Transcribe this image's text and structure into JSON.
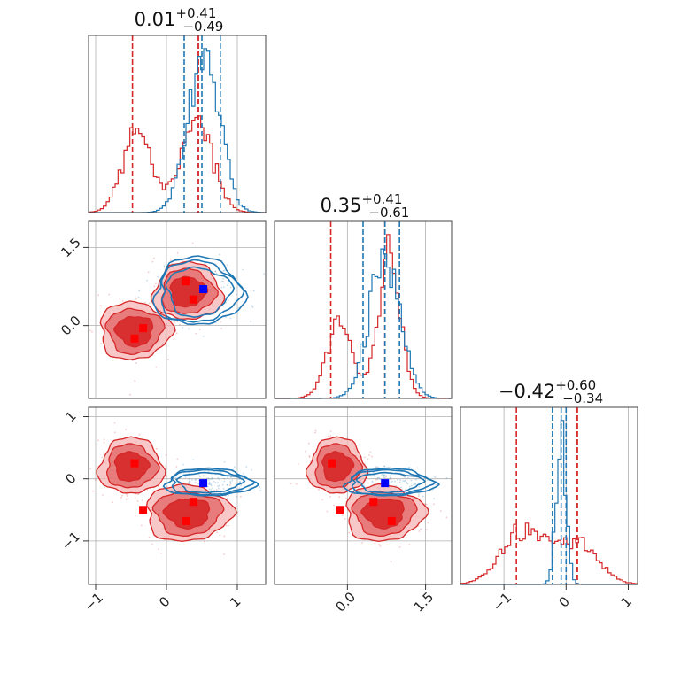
{
  "chart_data": {
    "type": "corner",
    "parameters": [
      "p0",
      "p1",
      "p2"
    ],
    "colors": {
      "blue": "#1f77b4",
      "red": "#d62728",
      "blue_marker": "#0000ff",
      "red_marker": "#ff0000"
    },
    "titles": [
      {
        "value": "0.01",
        "sup": "+0.41",
        "sub": "−0.49"
      },
      {
        "value": "0.35",
        "sup": "+0.41",
        "sub": "−0.61"
      },
      {
        "value": "−0.42",
        "sup": "+0.60",
        "sub": "−0.34"
      }
    ],
    "ranges": [
      [
        -1.1,
        1.4
      ],
      [
        -1.4,
        2.0
      ],
      [
        -1.7,
        1.15
      ]
    ],
    "ticks": {
      "p0": {
        "values": [
          -1,
          0,
          1
        ],
        "labels": [
          "−1",
          "0",
          "1"
        ]
      },
      "p1": {
        "values": [
          0.0,
          1.5
        ],
        "labels": [
          "0.0",
          "1.5"
        ]
      },
      "p2": {
        "values": [
          -1,
          0,
          1
        ],
        "labels": [
          "−1",
          "0",
          "1"
        ]
      }
    },
    "grid": true,
    "histograms": [
      {
        "param": "p0",
        "blue": {
          "modes": [
            {
              "mean": 0.52,
              "sd": 0.22,
              "w": 1
            }
          ],
          "quantiles": [
            0.25,
            0.5,
            0.76
          ]
        },
        "red": {
          "modes": [
            {
              "mean": -0.42,
              "sd": 0.2,
              "w": 0.55
            },
            {
              "mean": 0.42,
              "sd": 0.22,
              "w": 0.62
            }
          ],
          "quantiles": [
            -0.48,
            0.45,
            0.45
          ]
        }
      },
      {
        "param": "p1",
        "blue": {
          "modes": [
            {
              "mean": 0.72,
              "sd": 0.3,
              "w": 1
            }
          ],
          "quantiles": [
            0.3,
            0.72,
            1.0
          ]
        },
        "red": {
          "modes": [
            {
              "mean": -0.15,
              "sd": 0.25,
              "w": 0.55
            },
            {
              "mean": 0.8,
              "sd": 0.22,
              "w": 0.95
            }
          ],
          "quantiles": [
            -0.32,
            0.72,
            0.72
          ]
        }
      },
      {
        "param": "p2",
        "blue": {
          "modes": [
            {
              "mean": -0.08,
              "sd": 0.08,
              "w": 1
            }
          ],
          "quantiles": [
            -0.22,
            -0.08,
            0.0
          ]
        },
        "red": {
          "modes": [
            {
              "mean": -0.7,
              "sd": 0.35,
              "w": 0.35
            },
            {
              "mean": 0.15,
              "sd": 0.35,
              "w": 0.28
            }
          ],
          "quantiles": [
            -0.8,
            0.18,
            0.18
          ]
        }
      }
    ],
    "pairs": [
      {
        "x": "p0",
        "y": "p1",
        "blue_blobs": [
          {
            "cx": 0.45,
            "cy": 0.65,
            "rx": 0.62,
            "ry": 0.65,
            "rot": 0
          }
        ],
        "red_blobs": [
          {
            "cx": 0.3,
            "cy": 0.65,
            "rx": 0.48,
            "ry": 0.55,
            "rot": 0
          },
          {
            "cx": -0.45,
            "cy": -0.1,
            "rx": 0.5,
            "ry": 0.55,
            "rot": 0
          }
        ],
        "blue_markers": [
          [
            0.52,
            0.7
          ]
        ],
        "red_markers": [
          [
            0.27,
            0.85
          ],
          [
            0.38,
            0.5
          ],
          [
            -0.33,
            -0.05
          ],
          [
            -0.45,
            -0.25
          ]
        ]
      },
      {
        "x": "p0",
        "y": "p2",
        "blue_blobs": [
          {
            "cx": 0.6,
            "cy": -0.06,
            "rx": 0.62,
            "ry": 0.22,
            "rot": 0
          }
        ],
        "red_blobs": [
          {
            "cx": -0.5,
            "cy": 0.2,
            "rx": 0.45,
            "ry": 0.45,
            "rot": 0
          },
          {
            "cx": 0.3,
            "cy": -0.55,
            "rx": 0.6,
            "ry": 0.45,
            "rot": 0
          }
        ],
        "blue_markers": [
          [
            0.52,
            -0.07
          ]
        ],
        "red_markers": [
          [
            -0.45,
            0.25
          ],
          [
            -0.33,
            -0.5
          ],
          [
            0.38,
            -0.37
          ],
          [
            0.28,
            -0.68
          ]
        ]
      },
      {
        "x": "p1",
        "y": "p2",
        "blue_blobs": [
          {
            "cx": 0.8,
            "cy": -0.06,
            "rx": 0.85,
            "ry": 0.22,
            "rot": 0
          }
        ],
        "red_blobs": [
          {
            "cx": -0.2,
            "cy": 0.2,
            "rx": 0.55,
            "ry": 0.45,
            "rot": 0
          },
          {
            "cx": 0.7,
            "cy": -0.55,
            "rx": 0.75,
            "ry": 0.45,
            "rot": 0
          }
        ],
        "blue_markers": [
          [
            0.72,
            -0.07
          ]
        ],
        "red_markers": [
          [
            -0.3,
            0.25
          ],
          [
            -0.15,
            -0.5
          ],
          [
            0.5,
            -0.37
          ],
          [
            0.85,
            -0.68
          ]
        ]
      }
    ]
  }
}
